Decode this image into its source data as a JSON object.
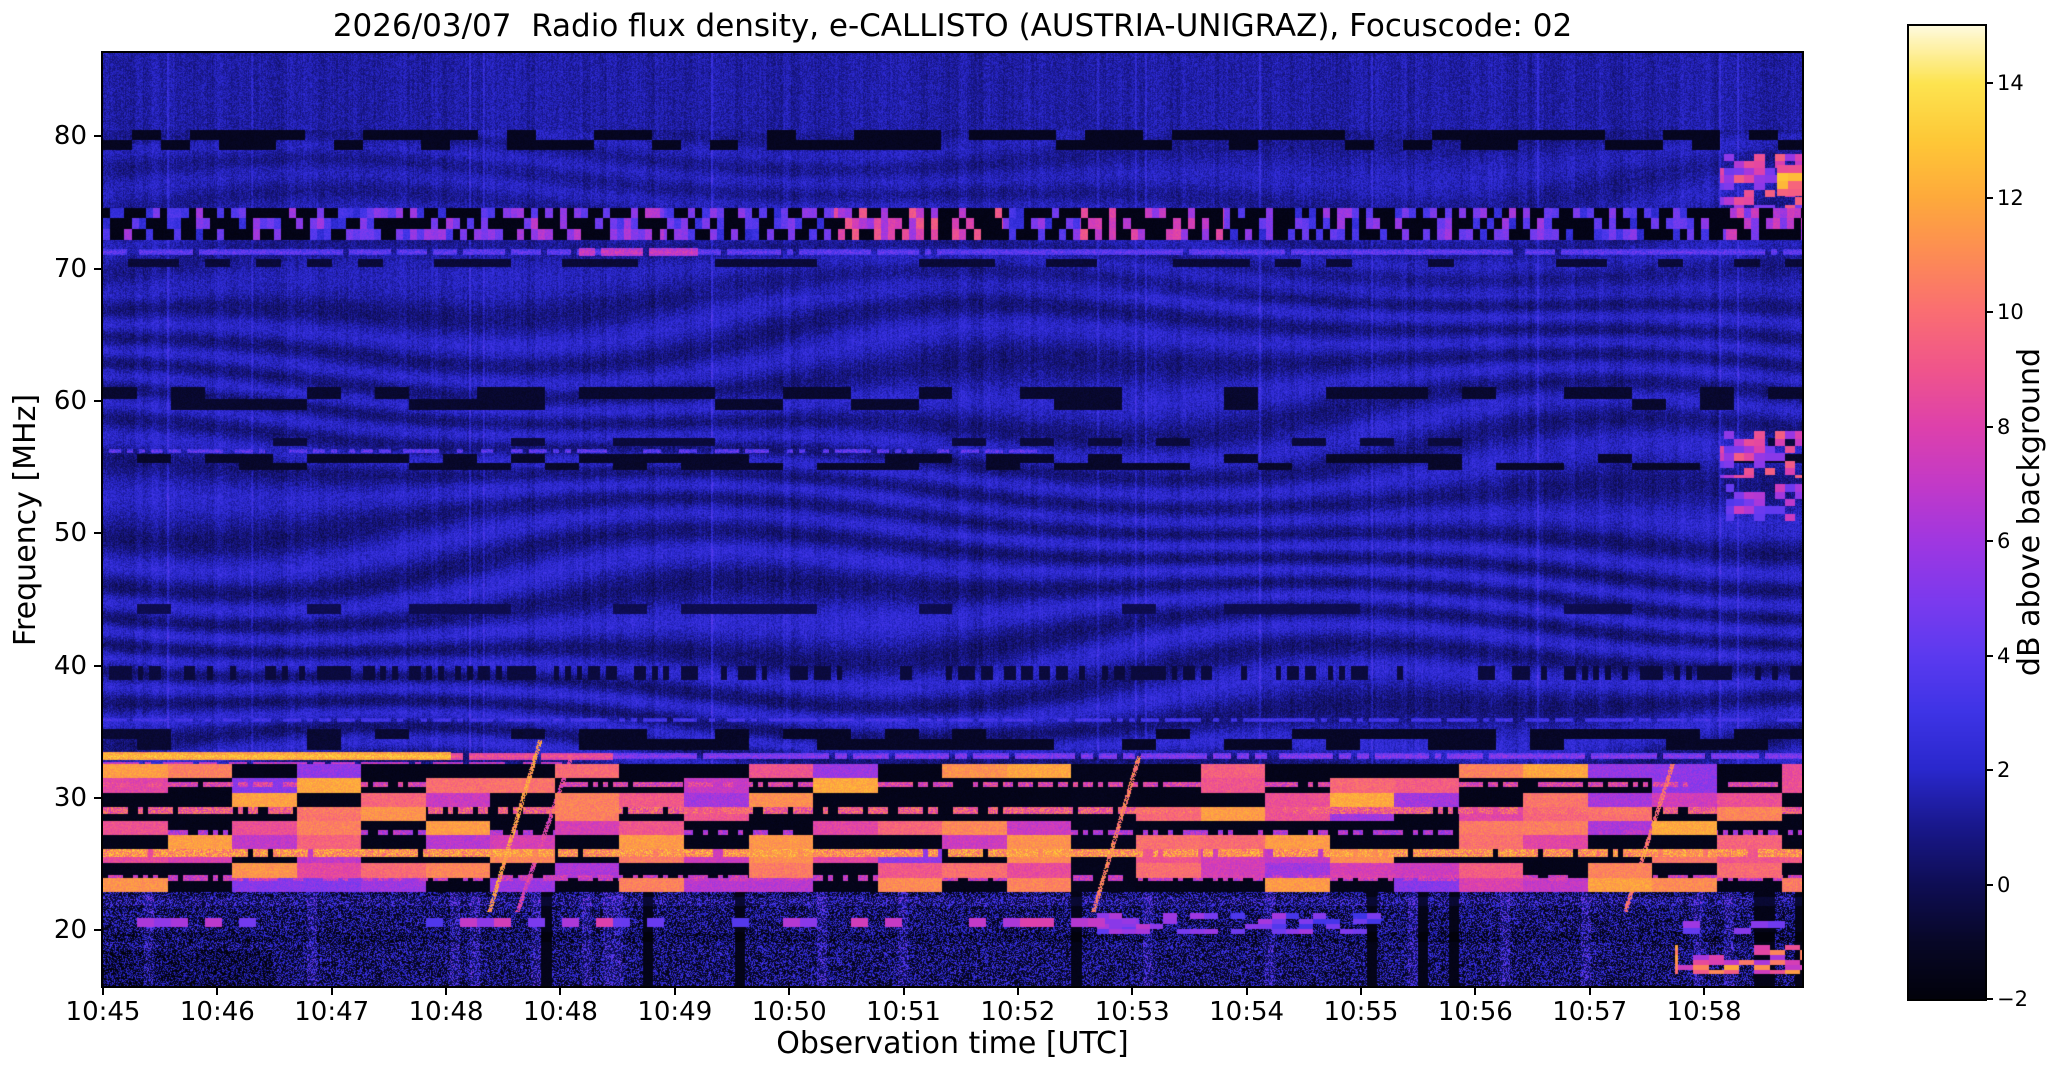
{
  "page": {
    "background": "#ffffff"
  },
  "chart_data": {
    "type": "heatmap",
    "subtype": "radio-spectrogram",
    "title": "2026/03/07  Radio flux density, e-CALLISTO (AUSTRIA-UNIGRAZ), Focuscode: 02",
    "xlabel": "Observation time [UTC]",
    "ylabel": "Frequency [MHz]",
    "x_ticks": [
      "10:45",
      "10:46",
      "10:47",
      "10:48",
      "10:48",
      "10:49",
      "10:50",
      "10:51",
      "10:52",
      "10:53",
      "10:54",
      "10:55",
      "10:56",
      "10:57",
      "10:58"
    ],
    "y_ticks": [
      80,
      70,
      60,
      50,
      40,
      30,
      20
    ],
    "freq_range_mhz": [
      15.8,
      86.3
    ],
    "time_start": "10:45",
    "time_end": "10:59",
    "colorbar": {
      "label": "dB above background",
      "ticks": [
        14,
        12,
        10,
        8,
        6,
        4,
        2,
        0,
        -2
      ],
      "range": [
        -2,
        15
      ]
    },
    "colormap_stops": [
      [
        -2.0,
        [
          2,
          2,
          12
        ]
      ],
      [
        -1.0,
        [
          8,
          8,
          40
        ]
      ],
      [
        0.0,
        [
          15,
          14,
          85
        ]
      ],
      [
        1.0,
        [
          25,
          24,
          140
        ]
      ],
      [
        2.0,
        [
          42,
          40,
          205
        ]
      ],
      [
        3.0,
        [
          62,
          52,
          230
        ]
      ],
      [
        4.0,
        [
          92,
          58,
          240
        ]
      ],
      [
        5.0,
        [
          125,
          58,
          238
        ]
      ],
      [
        6.0,
        [
          160,
          55,
          225
        ]
      ],
      [
        7.0,
        [
          195,
          58,
          200
        ]
      ],
      [
        8.0,
        [
          222,
          65,
          172
        ]
      ],
      [
        9.0,
        [
          240,
          85,
          140
        ]
      ],
      [
        10.0,
        [
          250,
          110,
          115
        ]
      ],
      [
        11.0,
        [
          253,
          140,
          85
        ]
      ],
      [
        12.0,
        [
          254,
          170,
          60
        ]
      ],
      [
        13.0,
        [
          254,
          200,
          55
        ]
      ],
      [
        14.0,
        [
          253,
          228,
          80
        ]
      ],
      [
        15.0,
        [
          255,
          250,
          220
        ]
      ]
    ],
    "features_summary": [
      "Blue background noise ~1-2 dB with faint vertical striping",
      "Wavy ionospheric interference fringes between ~33 and ~70 MHz",
      "Very bright horizontal RFI line at ~33 MHz, strongest 10:45-10:48",
      "Checkerboard RFI blocks (black / orange-yellow) from ~23 to ~32.5 MHz with persistent bright rows near 26, 29 and 31 MHz",
      "Ionosonde chirp sweeps rising 21->34 MHz near 10:48.3, 10:53.3 and 10:57.9",
      "Broadband speckle noise and dark gaps below ~23 MHz, bright orange patch near 17-19 MHz at right edge",
      "Dense RFI band 72-74.5 MHz with bright magenta bursts 10:51-10:54",
      "Dark dashed suppressed bands near 80, 60, 55-56 and 44 MHz, dotted dark band at ~39.5 MHz",
      "Bright pink patches at far right edge (~10:59) near 51-58 MHz and 75-78 MHz",
      "Thin bright line at ~71.2 MHz across full duration"
    ],
    "render": {
      "base_level": 1.25,
      "noise_amp": 1.5,
      "waves": {
        "f_min": 32.6,
        "f_max": 80.5,
        "amp_low": 0.85,
        "amp_mid": 0.7,
        "amp_high": 0.4
      },
      "features": [
        {
          "kind": "dash",
          "f0": 79.0,
          "f1": 80.45,
          "colW": 0.017,
          "rowH": 0.75,
          "prob": 0.55,
          "value": -1.5,
          "t0": 0,
          "t1": 1
        },
        {
          "kind": "dash",
          "f0": 59.3,
          "f1": 61.05,
          "colW": 0.02,
          "rowH": 0.9,
          "prob": 0.5,
          "value": -1.1,
          "t0": 0,
          "t1": 1
        },
        {
          "kind": "dash",
          "f0": 54.8,
          "f1": 56.0,
          "colW": 0.02,
          "rowH": 0.65,
          "prob": 0.5,
          "value": -1.2,
          "t0": 0,
          "t1": 1
        },
        {
          "kind": "dash",
          "f0": 56.6,
          "f1": 57.2,
          "colW": 0.02,
          "rowH": 0.6,
          "prob": 0.3,
          "value": -0.8,
          "t0": 0,
          "t1": 1
        },
        {
          "kind": "line",
          "f": 56.2,
          "hw": 0.16,
          "t0": 0,
          "t1": 0.55,
          "base": 3.0,
          "amp": 2.5,
          "gapProb": 0.45
        },
        {
          "kind": "dash",
          "f0": 70.15,
          "f1": 70.75,
          "colW": 0.015,
          "rowH": 0.6,
          "prob": 0.5,
          "value": -0.9,
          "t0": 0,
          "t1": 1
        },
        {
          "kind": "line",
          "f": 71.25,
          "hw": 0.22,
          "t0": 0,
          "t1": 1,
          "base": 3.2,
          "amp": 2.2,
          "gapProb": 0.08
        },
        {
          "kind": "line",
          "f": 71.25,
          "hw": 0.3,
          "t0": 0.28,
          "t1": 0.35,
          "base": 6.5,
          "amp": 2.0,
          "gapProb": 0.1
        },
        {
          "kind": "rfi",
          "f0": 72.15,
          "f1": 74.6,
          "colW": 0.0042,
          "rowH": 0.8,
          "prob": 0.5,
          "base": 2.2,
          "amp": 4.0,
          "boosts": [
            {
              "t0": 0.43,
              "t1": 0.53,
              "add": 3.5
            },
            {
              "t0": 0.575,
              "t1": 0.66,
              "add": 3.0
            },
            {
              "t0": 0.24,
              "t1": 0.33,
              "add": 1.2
            },
            {
              "t0": 0.955,
              "t1": 1.0,
              "add": 2.5
            }
          ]
        },
        {
          "kind": "dots",
          "f": 39.45,
          "hw": 0.55,
          "period": 0.0034,
          "duty": 0.5,
          "value": -0.7
        },
        {
          "kind": "dash",
          "f0": 43.9,
          "f1": 44.7,
          "colW": 0.02,
          "rowH": 0.8,
          "prob": 0.4,
          "value": -0.35,
          "t0": 0,
          "t1": 1
        },
        {
          "kind": "line",
          "f": 35.9,
          "hw": 0.15,
          "t0": 0,
          "t1": 1,
          "base": 2.8,
          "amp": 1.4,
          "gapProb": 0.3
        },
        {
          "kind": "dash",
          "f0": 33.6,
          "f1": 35.25,
          "colW": 0.02,
          "rowH": 0.8,
          "prob": 0.62,
          "value": -1.3,
          "t0": 0.27,
          "t1": 1
        },
        {
          "kind": "dash",
          "f0": 33.6,
          "f1": 35.25,
          "colW": 0.02,
          "rowH": 0.8,
          "prob": 0.3,
          "value": -1.0,
          "t0": 0,
          "t1": 0.27
        },
        {
          "kind": "line",
          "f": 32.62,
          "hw": 0.14,
          "t0": 0,
          "t1": 0.27,
          "base": 6.0,
          "amp": 2.5,
          "gapProb": 0.2
        },
        {
          "kind": "line",
          "f": 33.15,
          "hw": 0.3,
          "t0": 0,
          "t1": 0.205,
          "base": 11.5,
          "amp": 2.5,
          "gapProb": 0.02
        },
        {
          "kind": "line",
          "f": 33.15,
          "hw": 0.26,
          "t0": 0.205,
          "t1": 0.3,
          "base": 8.0,
          "amp": 2.0,
          "gapProb": 0.06
        },
        {
          "kind": "line",
          "f": 33.15,
          "hw": 0.22,
          "t0": 0.3,
          "t1": 1,
          "base": 4.3,
          "amp": 2.2,
          "gapProb": 0.15
        },
        {
          "kind": "checker",
          "f0": 22.9,
          "f1": 32.55,
          "colW": 0.038,
          "rowH": 1.07,
          "darkProb": 0.44,
          "darkVal": -1.7,
          "base": 5.2,
          "amp": 6.8,
          "colDarkProb": 0.17,
          "rows": [
            {
              "f": 25.85,
              "hw": 0.3,
              "base": 9.0,
              "amp": 4.5,
              "gapProb": 0.08
            },
            {
              "f": 29.05,
              "hw": 0.24,
              "base": 7.0,
              "amp": 4.5,
              "gapProb": 0.22
            },
            {
              "f": 31.05,
              "hw": 0.2,
              "base": 6.0,
              "amp": 4.0,
              "gapProb": 0.3
            },
            {
              "f": 23.95,
              "hw": 0.2,
              "base": 5.5,
              "amp": 3.5,
              "gapProb": 0.35
            },
            {
              "f": 27.4,
              "hw": 0.18,
              "base": 5.0,
              "amp": 3.0,
              "gapProb": 0.4
            }
          ]
        },
        {
          "kind": "bottom",
          "f0": 15.8,
          "f1": 22.9,
          "darkProb": 0.52,
          "brightAmp": 3.0
        },
        {
          "kind": "chirp",
          "t0": 0.2275,
          "dt": 0.03,
          "f0": 21.4,
          "f1": 34.4,
          "int": 11.5
        },
        {
          "kind": "chirp",
          "t0": 0.244,
          "dt": 0.032,
          "f0": 21.4,
          "f1": 33.2,
          "int": 8.0
        },
        {
          "kind": "chirp",
          "t0": 0.583,
          "dt": 0.027,
          "f0": 21.4,
          "f1": 33.2,
          "int": 10.5
        },
        {
          "kind": "chirp",
          "t0": 0.896,
          "dt": 0.028,
          "f0": 21.4,
          "f1": 32.6,
          "int": 10.0
        },
        {
          "kind": "patch",
          "t0": 0.585,
          "t1": 0.76,
          "f0": 19.7,
          "f1": 21.3,
          "colW": 0.008,
          "rowH": 0.4,
          "prob": 0.5,
          "base": 3.0,
          "amp": 4.0
        },
        {
          "kind": "patch",
          "t0": 0.0,
          "t1": 0.62,
          "f0": 20.25,
          "f1": 20.95,
          "colW": 0.01,
          "rowH": 0.7,
          "prob": 0.4,
          "base": 3.5,
          "amp": 4.5
        },
        {
          "kind": "patch",
          "t0": 0.925,
          "t1": 1.0,
          "f0": 16.7,
          "f1": 18.9,
          "colW": 0.009,
          "rowH": 0.38,
          "prob": 0.6,
          "base": 6.0,
          "amp": 6.0
        },
        {
          "kind": "patch",
          "t0": 0.93,
          "t1": 1.0,
          "f0": 19.7,
          "f1": 20.7,
          "colW": 0.01,
          "rowH": 0.5,
          "prob": 0.5,
          "base": 4.0,
          "amp": 4.0
        },
        {
          "kind": "patch",
          "t0": 0.952,
          "t1": 1.0,
          "f0": 74.6,
          "f1": 78.7,
          "colW": 0.006,
          "rowH": 0.55,
          "prob": 0.5,
          "base": 4.5,
          "amp": 5.0
        },
        {
          "kind": "patch",
          "t0": 0.952,
          "t1": 1.0,
          "f0": 54.2,
          "f1": 57.7,
          "colW": 0.006,
          "rowH": 0.55,
          "prob": 0.5,
          "base": 4.5,
          "amp": 5.0
        },
        {
          "kind": "patch",
          "t0": 0.955,
          "t1": 1.0,
          "f0": 50.9,
          "f1": 53.7,
          "colW": 0.006,
          "rowH": 0.55,
          "prob": 0.45,
          "base": 3.5,
          "amp": 4.0
        },
        {
          "kind": "patch",
          "t0": 0.985,
          "t1": 1.0,
          "f0": 75.5,
          "f1": 77.8,
          "colW": 0.008,
          "rowH": 0.6,
          "prob": 0.85,
          "base": 8.0,
          "amp": 5.0
        }
      ]
    }
  }
}
